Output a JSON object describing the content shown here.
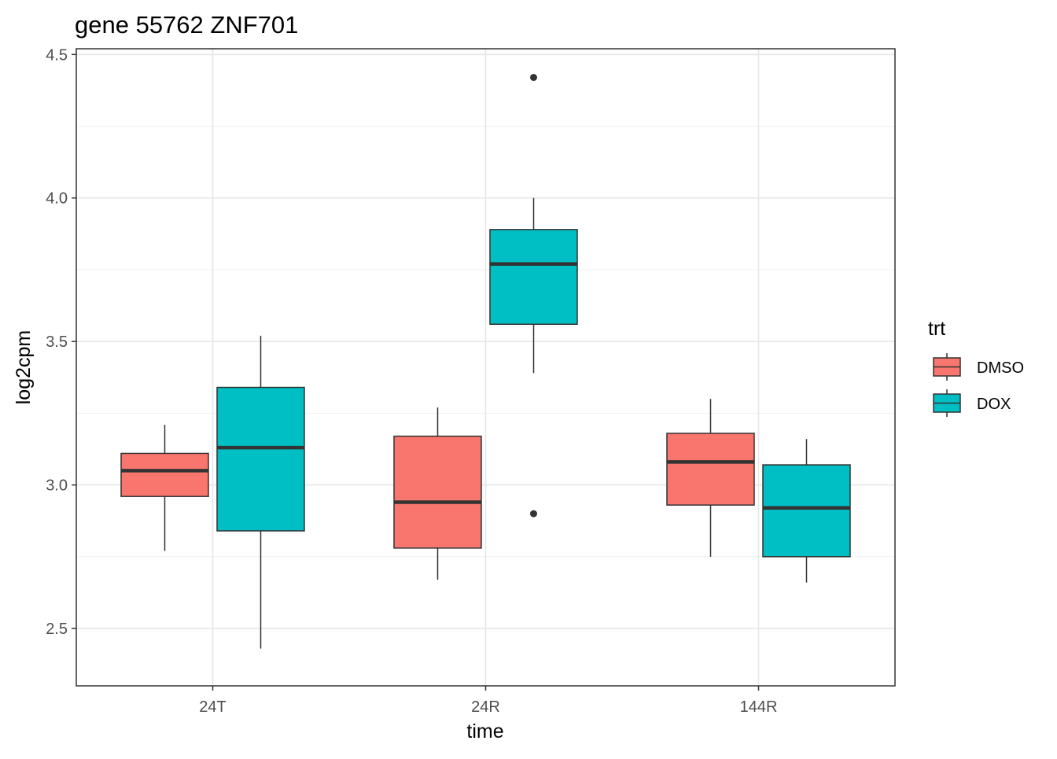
{
  "chart_data": {
    "type": "boxplot",
    "title": "gene 55762 ZNF701",
    "xlabel": "time",
    "ylabel": "log2cpm",
    "categories": [
      "24T",
      "24R",
      "144R"
    ],
    "ylim": [
      2.3,
      4.52
    ],
    "yticks": [
      2.5,
      3.0,
      3.5,
      4.0,
      4.5
    ],
    "ytick_labels": [
      "2.5",
      "3.0",
      "3.5",
      "4.0",
      "4.5"
    ],
    "grid": true,
    "legend": {
      "title": "trt",
      "position": "right"
    },
    "series": [
      {
        "name": "DMSO",
        "color": "#F8766D",
        "boxes": [
          {
            "category": "24T",
            "min": 2.77,
            "q1": 2.96,
            "median": 3.05,
            "q3": 3.11,
            "max": 3.21,
            "outliers": []
          },
          {
            "category": "24R",
            "min": 2.67,
            "q1": 2.78,
            "median": 2.94,
            "q3": 3.17,
            "max": 3.27,
            "outliers": []
          },
          {
            "category": "144R",
            "min": 2.75,
            "q1": 2.93,
            "median": 3.08,
            "q3": 3.18,
            "max": 3.3,
            "outliers": []
          }
        ]
      },
      {
        "name": "DOX",
        "color": "#00BFC4",
        "boxes": [
          {
            "category": "24T",
            "min": 2.43,
            "q1": 2.84,
            "median": 3.13,
            "q3": 3.34,
            "max": 3.52,
            "outliers": []
          },
          {
            "category": "24R",
            "min": 3.39,
            "q1": 3.56,
            "median": 3.77,
            "q3": 3.89,
            "max": 4.0,
            "outliers": [
              4.42,
              2.9
            ]
          },
          {
            "category": "144R",
            "min": 2.66,
            "q1": 2.75,
            "median": 2.92,
            "q3": 3.07,
            "max": 3.16,
            "outliers": []
          }
        ]
      }
    ]
  }
}
